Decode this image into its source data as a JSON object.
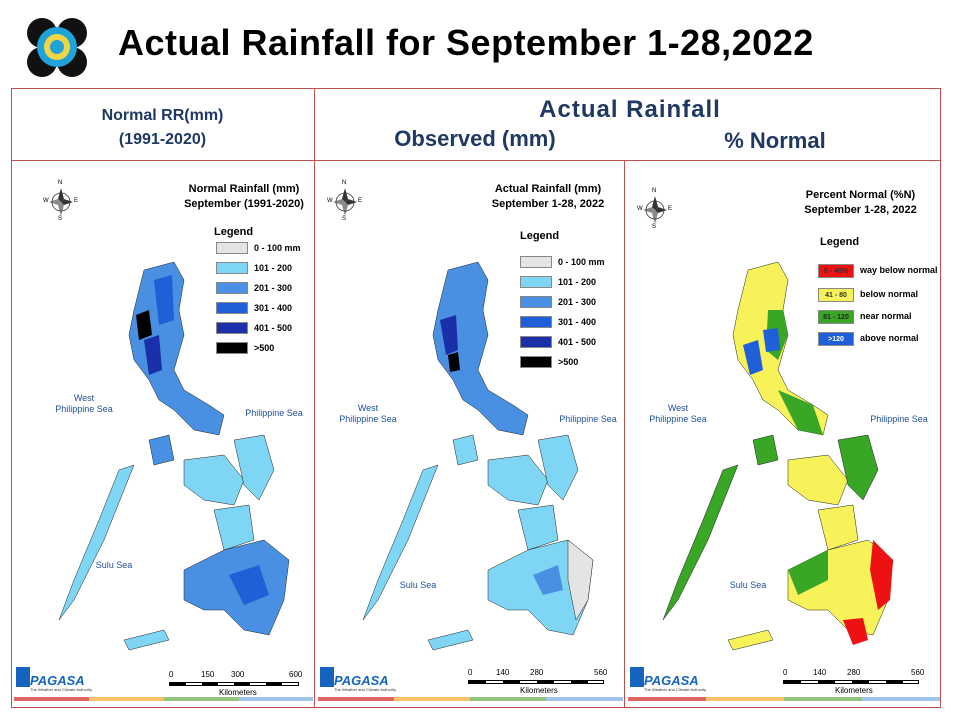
{
  "title": "Actual Rainfall for September 1-28,2022",
  "header": {
    "normal_l1": "Normal RR(mm)",
    "normal_l2": "(1991-2020)",
    "actual": "Actual Rainfall",
    "observed": "Observed (mm)",
    "pct": "% Normal"
  },
  "panels": [
    {
      "title_l1": "Normal Rainfall (mm)",
      "title_l2": "September (1991-2020)",
      "legend_title": "Legend",
      "legend": [
        {
          "label": "0 - 100 mm",
          "color": "#e4e4e4"
        },
        {
          "label": "101 - 200",
          "color": "#7fd6f4"
        },
        {
          "label": "201 - 300",
          "color": "#4a90e2"
        },
        {
          "label": "301 - 400",
          "color": "#1f5fd8"
        },
        {
          "label": "401 - 500",
          "color": "#1a2fa8"
        },
        {
          "label": ">500",
          "color": "#000000"
        }
      ],
      "sea_west": "West\nPhilippine Sea",
      "sea_east": "Philippine Sea",
      "sea_south": "Sulu Sea",
      "scale": [
        "0",
        "150",
        "300",
        "600"
      ],
      "scale_unit": "Kilometers"
    },
    {
      "title_l1": "Actual Rainfall (mm)",
      "title_l2": "September 1-28, 2022",
      "legend_title": "Legend",
      "legend": [
        {
          "label": "0 - 100 mm",
          "color": "#e4e4e4"
        },
        {
          "label": "101 - 200",
          "color": "#7fd6f4"
        },
        {
          "label": "201 - 300",
          "color": "#4a90e2"
        },
        {
          "label": "301 - 400",
          "color": "#1f5fd8"
        },
        {
          "label": "401 - 500",
          "color": "#1a2fa8"
        },
        {
          "label": ">500",
          "color": "#000000"
        }
      ],
      "sea_west": "West\nPhilippine Sea",
      "sea_east": "Philippine Sea",
      "sea_south": "Sulu Sea",
      "scale": [
        "0",
        "140",
        "280",
        "560"
      ],
      "scale_unit": "Kilometers"
    },
    {
      "title_l1": "Percent Normal (%N)",
      "title_l2": "September 1-28, 2022",
      "legend_title": "Legend",
      "legend": [
        {
          "label": "way below normal",
          "swatch": "0 - 40%",
          "color": "#ee1111"
        },
        {
          "label": "below normal",
          "swatch": "41 - 80",
          "color": "#f7f25a"
        },
        {
          "label": "near normal",
          "swatch": "81 - 120",
          "color": "#3aa626"
        },
        {
          "label": "above normal",
          "swatch": ">120",
          "color": "#1f5fd8"
        }
      ],
      "sea_west": "West\nPhilippine Sea",
      "sea_east": "Philippine Sea",
      "sea_south": "Sulu Sea",
      "scale": [
        "0",
        "140",
        "280",
        "560"
      ],
      "scale_unit": "Kilometers"
    }
  ],
  "logo_text": "PAGASA",
  "logo_sub": "The Weather and Climate Authority",
  "compass": {
    "n": "N",
    "s": "S",
    "e": "E",
    "w": "W"
  },
  "stripe_colors": [
    "#e06666",
    "#f6c26b",
    "#93c47d",
    "#9fc5e8"
  ]
}
